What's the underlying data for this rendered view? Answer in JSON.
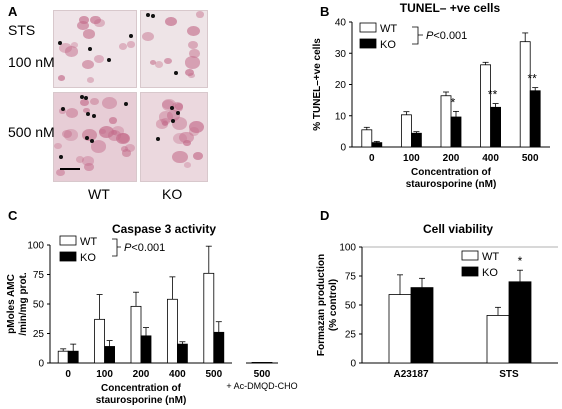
{
  "panel_a": {
    "letter": "A",
    "row_labels": [
      "STS",
      "100 nM",
      "500 nM"
    ],
    "col_labels": [
      "WT",
      "KO"
    ]
  },
  "panel_b": {
    "letter": "B"
  },
  "panel_c": {
    "letter": "C"
  },
  "panel_d": {
    "letter": "D"
  },
  "chart_data": [
    {
      "id": "B",
      "type": "bar",
      "title": "TUNEL– +ve cells",
      "ylabel": "% TUNEL–+ve cells",
      "xlabel_lines": [
        "Concentration of",
        "staurosporine (nM)"
      ],
      "categories": [
        "0",
        "100",
        "200",
        "400",
        "500"
      ],
      "series": [
        {
          "name": "WT",
          "values": [
            5.5,
            10.3,
            16.4,
            26.3,
            33.7
          ],
          "errors": [
            0.8,
            1.0,
            1.2,
            0.8,
            2.8
          ],
          "color": "#ffffff"
        },
        {
          "name": "KO",
          "values": [
            1.4,
            4.4,
            9.6,
            12.7,
            18.0
          ],
          "errors": [
            0.4,
            0.5,
            1.8,
            1.2,
            1.0
          ],
          "color": "#000000"
        }
      ],
      "significance": [
        "",
        "",
        "*",
        "**",
        "**"
      ],
      "stat_label": "P<0.001",
      "ylim": [
        0,
        40
      ],
      "yticks": [
        0,
        10,
        20,
        30,
        40
      ]
    },
    {
      "id": "C",
      "type": "bar",
      "title": "Caspase 3 activity",
      "ylabel_lines": [
        "pMoles AMC",
        "/min/mg prot."
      ],
      "xlabel_lines": [
        "Concentration of",
        "staurosporine (nM)"
      ],
      "categories": [
        "0",
        "100",
        "200",
        "400",
        "500"
      ],
      "extra_category": {
        "label": "500",
        "sublabel": "+ Ac-DMQD-CHO",
        "wt": 0.5,
        "ko": 0.5
      },
      "series": [
        {
          "name": "WT",
          "values": [
            10,
            37,
            48,
            54,
            76
          ],
          "errors": [
            2,
            21,
            12,
            19,
            23
          ],
          "color": "#ffffff"
        },
        {
          "name": "KO",
          "values": [
            10,
            14,
            23,
            16,
            26
          ],
          "errors": [
            6,
            5,
            7,
            2,
            9
          ],
          "color": "#000000"
        }
      ],
      "stat_label": "P<0.001",
      "ylim": [
        0,
        100
      ],
      "yticks": [
        0,
        25,
        50,
        75,
        100
      ]
    },
    {
      "id": "D",
      "type": "bar",
      "title": "Cell viability",
      "ylabel_lines": [
        "Formazan production",
        "(% control)"
      ],
      "categories": [
        "A23187",
        "STS"
      ],
      "series": [
        {
          "name": "WT",
          "values": [
            59,
            41
          ],
          "errors": [
            17,
            7
          ],
          "color": "#ffffff"
        },
        {
          "name": "KO",
          "values": [
            65,
            70
          ],
          "errors": [
            8,
            10
          ],
          "color": "#000000"
        }
      ],
      "significance": [
        "",
        "*"
      ],
      "reference_line": 100,
      "ylim": [
        0,
        100
      ],
      "yticks": [
        0,
        25,
        50,
        75,
        100
      ]
    }
  ]
}
